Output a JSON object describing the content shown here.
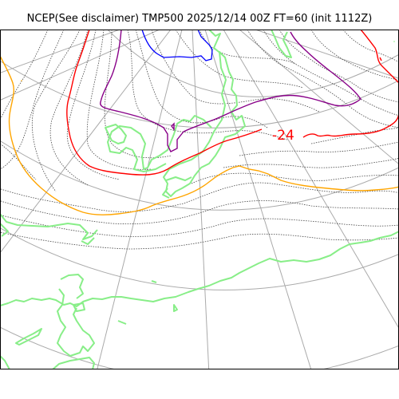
{
  "title": "NCEP(See disclaimer) TMP500 2025/12/14 00Z FT=60 (init 1112Z)",
  "contour_labels": [
    {
      "text": "-24",
      "color": "#ff0000"
    }
  ],
  "colors": {
    "graticule": "#aaaaaa",
    "coastline": "#88ee88",
    "height_contours": "#333333",
    "isotherm_blue": "#0000ff",
    "isotherm_purple": "#880088",
    "isotherm_red": "#ff0000",
    "isotherm_orange": "#ffa500",
    "frame": "#000000"
  }
}
